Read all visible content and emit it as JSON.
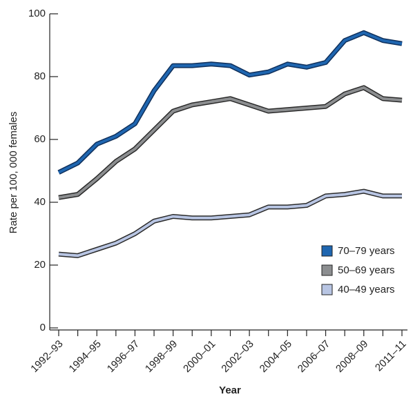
{
  "chart_data": {
    "type": "line",
    "xlabel": "Year",
    "ylabel": "Rate per 100, 000 females",
    "categories": [
      "1992–93",
      null,
      "1994–95",
      null,
      "1996–97",
      null,
      "1998–99",
      null,
      "2000–01",
      null,
      "2002–03",
      null,
      "2004–05",
      null,
      "2006–07",
      null,
      "2008–09",
      null,
      "2011–11"
    ],
    "series": [
      {
        "name": "70–79 years",
        "color": "#1f66b0",
        "values": [
          49.5,
          52.5,
          58.5,
          61,
          65,
          75.5,
          83.5,
          83.5,
          84,
          83.5,
          80.5,
          81.5,
          84,
          83,
          84.5,
          91.5,
          94,
          91.5,
          90.5
        ]
      },
      {
        "name": "50–69 years",
        "color": "#8c8e90",
        "values": [
          41.5,
          42.5,
          47.5,
          53,
          57,
          63,
          69,
          71,
          72,
          73,
          71,
          69,
          69.5,
          70,
          70.5,
          74.5,
          76.5,
          73,
          72.5
        ]
      },
      {
        "name": "40–49 years",
        "color": "#b8c5e3",
        "values": [
          23.5,
          23,
          25,
          27,
          30,
          34,
          35.5,
          35,
          35,
          35.5,
          36,
          38.5,
          38.5,
          39,
          42,
          42.5,
          43.5,
          42,
          42
        ]
      }
    ],
    "ylim": [
      0,
      100
    ],
    "yticks": [
      0,
      20,
      40,
      60,
      80,
      100
    ],
    "legend": "lower right"
  }
}
